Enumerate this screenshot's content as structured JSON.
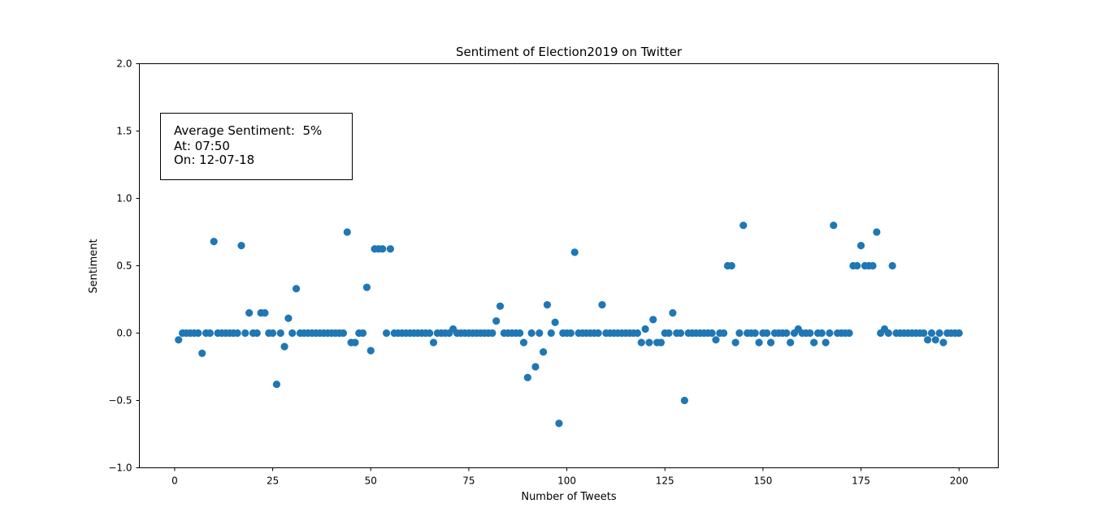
{
  "chart_data": {
    "type": "scatter",
    "title": "Sentiment of Election2019 on Twitter",
    "xlabel": "Number of Tweets",
    "ylabel": "Sentiment",
    "xlim": [
      -9,
      210
    ],
    "ylim": [
      -1.0,
      2.0
    ],
    "xticks": [
      0,
      25,
      50,
      75,
      100,
      125,
      150,
      175,
      200
    ],
    "yticks": [
      -1.0,
      -0.5,
      0.0,
      0.5,
      1.0,
      1.5,
      2.0
    ],
    "ytick_labels": [
      "−1.0",
      "−0.5",
      "0.0",
      "0.5",
      "1.0",
      "1.5",
      "2.0"
    ],
    "grid": false,
    "marker_color": "#1f77b4",
    "annotation": {
      "lines": [
        "Average Sentiment:  5%",
        "At: 07:50",
        "On: 12-07-18"
      ]
    },
    "x": [
      1,
      2,
      3,
      4,
      5,
      6,
      7,
      8,
      9,
      10,
      11,
      12,
      13,
      14,
      15,
      16,
      17,
      18,
      19,
      20,
      21,
      22,
      23,
      24,
      25,
      26,
      27,
      28,
      29,
      30,
      31,
      32,
      33,
      34,
      35,
      36,
      37,
      38,
      39,
      40,
      41,
      42,
      43,
      44,
      45,
      46,
      47,
      48,
      49,
      50,
      51,
      52,
      53,
      54,
      55,
      56,
      57,
      58,
      59,
      60,
      61,
      62,
      63,
      64,
      65,
      66,
      67,
      68,
      69,
      70,
      71,
      72,
      73,
      74,
      75,
      76,
      77,
      78,
      79,
      80,
      81,
      82,
      83,
      84,
      85,
      86,
      87,
      88,
      89,
      90,
      91,
      92,
      93,
      94,
      95,
      96,
      97,
      98,
      99,
      100,
      101,
      102,
      103,
      104,
      105,
      106,
      107,
      108,
      109,
      110,
      111,
      112,
      113,
      114,
      115,
      116,
      117,
      118,
      119,
      120,
      121,
      122,
      123,
      124,
      125,
      126,
      127,
      128,
      129,
      130,
      131,
      132,
      133,
      134,
      135,
      136,
      137,
      138,
      139,
      140,
      141,
      142,
      143,
      144,
      145,
      146,
      147,
      148,
      149,
      150,
      151,
      152,
      153,
      154,
      155,
      156,
      157,
      158,
      159,
      160,
      161,
      162,
      163,
      164,
      165,
      166,
      167,
      168,
      169,
      170,
      171,
      172,
      173,
      174,
      175,
      176,
      177,
      178,
      179,
      180,
      181,
      182,
      183,
      184,
      185,
      186,
      187,
      188,
      189,
      190,
      191,
      192,
      193,
      194,
      195,
      196,
      197,
      198,
      199,
      200
    ],
    "y": [
      -0.05,
      0,
      0,
      0,
      0,
      0,
      -0.15,
      0,
      0,
      0.68,
      0,
      0,
      0,
      0,
      0,
      0,
      0.65,
      0,
      0.15,
      0,
      0,
      0.15,
      0.15,
      0,
      0,
      -0.38,
      0,
      -0.1,
      0.11,
      0,
      0.33,
      0,
      0,
      0,
      0,
      0,
      0,
      0,
      0,
      0,
      0,
      0,
      0,
      0.75,
      -0.07,
      -0.07,
      0,
      0,
      0.34,
      -0.13,
      0.625,
      0.625,
      0.625,
      0,
      0.625,
      0,
      0,
      0,
      0,
      0,
      0,
      0,
      0,
      0,
      0,
      -0.07,
      0,
      0,
      0,
      0,
      0.03,
      0,
      0,
      0,
      0,
      0,
      0,
      0,
      0,
      0,
      0,
      0.09,
      0.2,
      0,
      0,
      0,
      0,
      0,
      -0.07,
      -0.33,
      0,
      -0.25,
      0,
      -0.14,
      0.21,
      0,
      0.08,
      -0.67,
      0,
      0,
      0,
      0.6,
      0,
      0,
      0,
      0,
      0,
      0,
      0.21,
      0,
      0,
      0,
      0,
      0,
      0,
      0,
      0,
      0,
      -0.07,
      0.03,
      -0.07,
      0.1,
      -0.07,
      -0.07,
      0,
      0,
      0.15,
      0,
      0,
      -0.5,
      0,
      0,
      0,
      0,
      0,
      0,
      0,
      -0.05,
      0,
      0,
      0.5,
      0.5,
      -0.07,
      0,
      0.8,
      0,
      0,
      0,
      -0.07,
      0,
      0,
      -0.07,
      0,
      0,
      0,
      0,
      -0.07,
      0,
      0.03,
      0,
      0,
      0,
      -0.07,
      0,
      0,
      -0.07,
      0,
      0.8,
      0,
      0,
      0,
      0,
      0.5,
      0.5,
      0.65,
      0.5,
      0.5,
      0.5,
      0.75,
      0,
      0.03,
      0,
      0.5,
      0,
      0,
      0,
      0,
      0,
      0,
      0,
      0,
      -0.05,
      0,
      -0.05,
      0,
      -0.07,
      0,
      0,
      0,
      0
    ]
  }
}
